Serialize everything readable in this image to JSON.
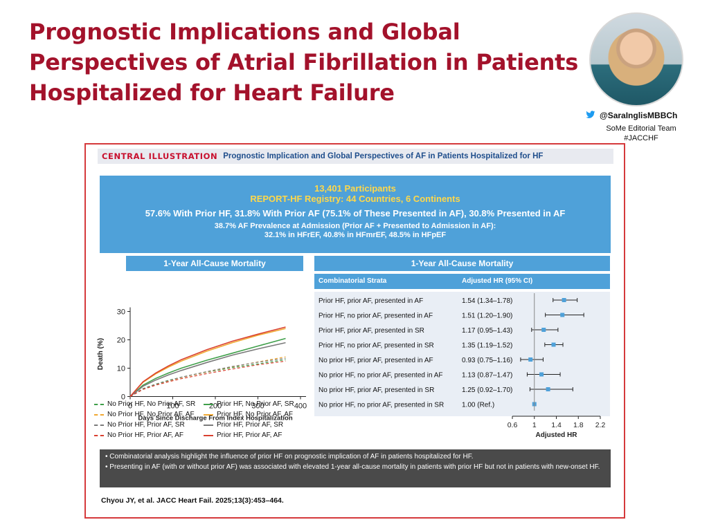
{
  "slide": {
    "title_lines": [
      "Prognostic Implications and Global",
      "Perspectives of Atrial Fibrillation in Patients",
      "Hospitalized for Heart Failure"
    ],
    "handle": "@SaraInglisMBBCh",
    "team": "SoMe Editorial Team",
    "hashtag": "#JACCHF"
  },
  "illustration": {
    "label": "CENTRAL ILLUSTRATION",
    "title": "Prognostic Implication and Global Perspectives of AF in Patients Hospitalized for HF",
    "participants": "13,401 Participants",
    "registry": "REPORT-HF Registry: 44 Countries, 6 Continents",
    "prior_stats": "57.6% With Prior HF, 31.8% With Prior AF (75.1% of These Presented in AF), 30.8% Presented in AF",
    "prevalence": "38.7% AF Prevalence at Admission (Prior AF + Presented to Admission in AF):",
    "prevalence_detail": "32.1% in HFrEF, 40.8% in HFmrEF, 48.5% in HFpEF",
    "notes": [
      "• Combinatorial analysis highlight the influence of prior HF on prognostic implication of AF in patients hospitalized for HF.",
      "• Presenting in AF (with or without prior AF) was associated with elevated 1-year all-cause mortality in patients with prior HF but not in patients with new-onset HF."
    ],
    "citation": "Chyou JY, et al. JACC Heart Fail. 2025;13(3):453–464."
  },
  "chart_data": [
    {
      "type": "line",
      "title": "1-Year All-Cause Mortality",
      "xlabel": "Days Since Discharge From Index Hospitalization",
      "ylabel": "Death (%)",
      "xlim": [
        0,
        400
      ],
      "ylim": [
        0,
        30
      ],
      "x_ticks": [
        0,
        100,
        200,
        300,
        400
      ],
      "y_ticks": [
        0,
        10,
        20,
        30
      ],
      "x": [
        0,
        30,
        60,
        90,
        120,
        180,
        240,
        300,
        365
      ],
      "series": [
        {
          "name": "No Prior HF, No Prior AF, SR",
          "color": "#3f9f4a",
          "dashed": true,
          "values": [
            0,
            2.8,
            4.4,
            5.7,
            6.8,
            8.6,
            10.2,
            11.5,
            13.0
          ]
        },
        {
          "name": "Prior HF, No Prior AF, SR",
          "color": "#3f9f4a",
          "dashed": false,
          "values": [
            0,
            4.0,
            6.4,
            8.3,
            10.0,
            12.8,
            15.3,
            17.8,
            20.5
          ]
        },
        {
          "name": "No Prior HF, No Prior AF, AF",
          "color": "#f0a830",
          "dashed": true,
          "values": [
            0,
            2.6,
            4.2,
            5.5,
            6.7,
            8.7,
            10.5,
            12.2,
            14.0
          ]
        },
        {
          "name": "Prior HF, No Prior AF, AF",
          "color": "#f0a830",
          "dashed": false,
          "values": [
            0,
            5.0,
            8.0,
            10.4,
            12.5,
            16.0,
            19.0,
            21.6,
            24.0
          ]
        },
        {
          "name": "No Prior HF, Prior AF, SR",
          "color": "#7a7a7a",
          "dashed": true,
          "values": [
            0,
            2.7,
            4.3,
            5.6,
            6.8,
            8.8,
            10.6,
            12.1,
            13.5
          ]
        },
        {
          "name": "Prior HF, Prior AF, SR",
          "color": "#7a7a7a",
          "dashed": false,
          "values": [
            0,
            3.6,
            5.8,
            7.6,
            9.2,
            12.0,
            14.6,
            16.8,
            19.0
          ]
        },
        {
          "name": "No Prior HF, Prior AF, AF",
          "color": "#d94030",
          "dashed": true,
          "values": [
            0,
            2.5,
            4.0,
            5.2,
            6.3,
            8.1,
            9.7,
            11.2,
            12.5
          ]
        },
        {
          "name": "Prior HF, Prior AF, AF",
          "color": "#d94030",
          "dashed": false,
          "values": [
            0,
            5.2,
            8.3,
            10.8,
            13.0,
            16.5,
            19.5,
            22.0,
            24.5
          ]
        }
      ]
    },
    {
      "type": "forest",
      "title": "1-Year All-Cause Mortality",
      "col_strata": "Combinatorial Strata",
      "col_hr": "Adjusted HR (95% CI)",
      "xlabel": "Adjusted HR",
      "xlim": [
        0.6,
        2.2
      ],
      "x_ticks": [
        "0.6",
        "1",
        "1.4",
        "1.8",
        "2.2"
      ],
      "rows": [
        {
          "label": "Prior HF, prior AF, presented in AF",
          "text": "1.54 (1.34–1.78)",
          "hr": 1.54,
          "lo": 1.34,
          "hi": 1.78
        },
        {
          "label": "Prior HF, no prior AF, presented in AF",
          "text": "1.51 (1.20–1.90)",
          "hr": 1.51,
          "lo": 1.2,
          "hi": 1.9
        },
        {
          "label": "Prior HF, prior AF, presented in SR",
          "text": "1.17 (0.95–1.43)",
          "hr": 1.17,
          "lo": 0.95,
          "hi": 1.43
        },
        {
          "label": "Prior HF, no prior AF, presented in SR",
          "text": "1.35 (1.19–1.52)",
          "hr": 1.35,
          "lo": 1.19,
          "hi": 1.52
        },
        {
          "label": "No prior HF, prior AF, presented in AF",
          "text": "0.93 (0.75–1.16)",
          "hr": 0.93,
          "lo": 0.75,
          "hi": 1.16
        },
        {
          "label": "No prior HF, no prior AF, presented in AF",
          "text": "1.13 (0.87–1.47)",
          "hr": 1.13,
          "lo": 0.87,
          "hi": 1.47
        },
        {
          "label": "No prior HF, prior AF, presented in SR",
          "text": "1.25 (0.92–1.70)",
          "hr": 1.25,
          "lo": 0.92,
          "hi": 1.7
        },
        {
          "label": "No prior HF, no prior AF, presented in SR",
          "text": "1.00 (Ref.)",
          "hr": 1.0,
          "lo": 1.0,
          "hi": 1.0
        }
      ]
    }
  ]
}
